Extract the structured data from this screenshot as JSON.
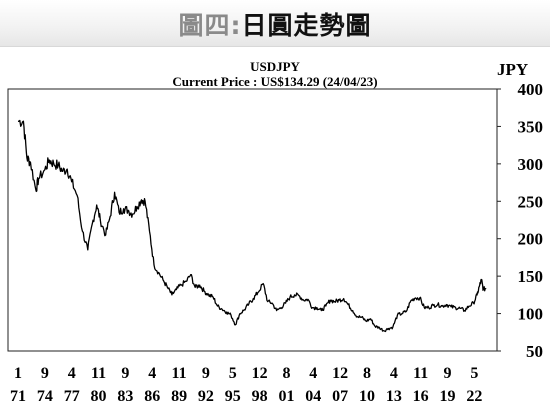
{
  "banner": {
    "prefix": "圖四:",
    "title": "日圓走勢圖"
  },
  "chart_data": {
    "type": "line",
    "title": "USDJPY",
    "subtitle": "Current Price : US$134.29 (24/04/23)",
    "ylabel": "JPY",
    "xlabel": "",
    "ylim": [
      50,
      400
    ],
    "y_ticks": [
      50,
      100,
      150,
      200,
      250,
      300,
      350,
      400
    ],
    "xlim": [
      1971.0,
      2023.3
    ],
    "x_ticks": [
      {
        "x": 1971,
        "month": "1",
        "year": "71"
      },
      {
        "x": 1974,
        "month": "9",
        "year": "74"
      },
      {
        "x": 1977,
        "month": "4",
        "year": "77"
      },
      {
        "x": 1980,
        "month": "11",
        "year": "80"
      },
      {
        "x": 1983,
        "month": "9",
        "year": "83"
      },
      {
        "x": 1986,
        "month": "4",
        "year": "86"
      },
      {
        "x": 1989,
        "month": "11",
        "year": "89"
      },
      {
        "x": 1992,
        "month": "9",
        "year": "92"
      },
      {
        "x": 1995,
        "month": "5",
        "year": "95"
      },
      {
        "x": 1998,
        "month": "12",
        "year": "98"
      },
      {
        "x": 2001,
        "month": "8",
        "year": "01"
      },
      {
        "x": 2004,
        "month": "4",
        "year": "04"
      },
      {
        "x": 2007,
        "month": "12",
        "year": "07"
      },
      {
        "x": 2010,
        "month": "8",
        "year": "10"
      },
      {
        "x": 2013,
        "month": "4",
        "year": "13"
      },
      {
        "x": 2016,
        "month": "11",
        "year": "16"
      },
      {
        "x": 2019,
        "month": "9",
        "year": "19"
      },
      {
        "x": 2022,
        "month": "5",
        "year": "22"
      }
    ],
    "grid": false,
    "series": [
      {
        "x": [
          1971.0,
          1971.6,
          1972.0,
          1972.4,
          1973.0,
          1973.3,
          1974.0,
          1974.5,
          1975.0,
          1975.5,
          1976.0,
          1976.5,
          1977.0,
          1977.6,
          1978.2,
          1978.8,
          1979.3,
          1979.8,
          1980.2,
          1980.8,
          1981.3,
          1981.8,
          1982.3,
          1982.8,
          1983.3,
          1983.8,
          1984.3,
          1984.8,
          1985.2,
          1985.7,
          1986.2,
          1986.7,
          1987.2,
          1987.7,
          1988.2,
          1988.7,
          1989.2,
          1989.8,
          1990.3,
          1990.8,
          1991.3,
          1991.8,
          1992.3,
          1992.8,
          1993.3,
          1993.8,
          1994.3,
          1994.8,
          1995.3,
          1995.8,
          1996.3,
          1996.8,
          1997.3,
          1997.8,
          1998.4,
          1998.9,
          1999.4,
          1999.9,
          2000.4,
          2000.9,
          2001.4,
          2001.9,
          2002.4,
          2002.9,
          2003.4,
          2003.9,
          2004.4,
          2004.9,
          2005.4,
          2005.9,
          2006.4,
          2006.9,
          2007.4,
          2007.9,
          2008.4,
          2008.9,
          2009.4,
          2009.9,
          2010.4,
          2010.9,
          2011.4,
          2011.9,
          2012.4,
          2012.9,
          2013.4,
          2013.9,
          2014.4,
          2014.9,
          2015.4,
          2015.9,
          2016.4,
          2016.9,
          2017.4,
          2017.9,
          2018.4,
          2018.9,
          2019.4,
          2019.9,
          2020.4,
          2020.9,
          2021.4,
          2021.9,
          2022.3,
          2022.6,
          2022.8,
          2023.0,
          2023.3
        ],
        "y": [
          357,
          357,
          308,
          302,
          265,
          280,
          292,
          305,
          300,
          298,
          290,
          293,
          276,
          258,
          210,
          185,
          220,
          245,
          225,
          205,
          230,
          262,
          235,
          240,
          238,
          233,
          243,
          252,
          250,
          210,
          165,
          155,
          145,
          135,
          125,
          132,
          138,
          143,
          152,
          135,
          138,
          130,
          125,
          122,
          110,
          106,
          102,
          98,
          85,
          100,
          105,
          113,
          120,
          128,
          140,
          116,
          114,
          104,
          108,
          114,
          122,
          125,
          124,
          118,
          119,
          108,
          108,
          104,
          110,
          118,
          116,
          118,
          120,
          112,
          104,
          96,
          95,
          90,
          93,
          83,
          81,
          77,
          80,
          82,
          98,
          100,
          103,
          117,
          121,
          121,
          108,
          108,
          111,
          112,
          110,
          112,
          109,
          108,
          107,
          104,
          110,
          114,
          125,
          138,
          145,
          132,
          134
        ]
      }
    ]
  }
}
